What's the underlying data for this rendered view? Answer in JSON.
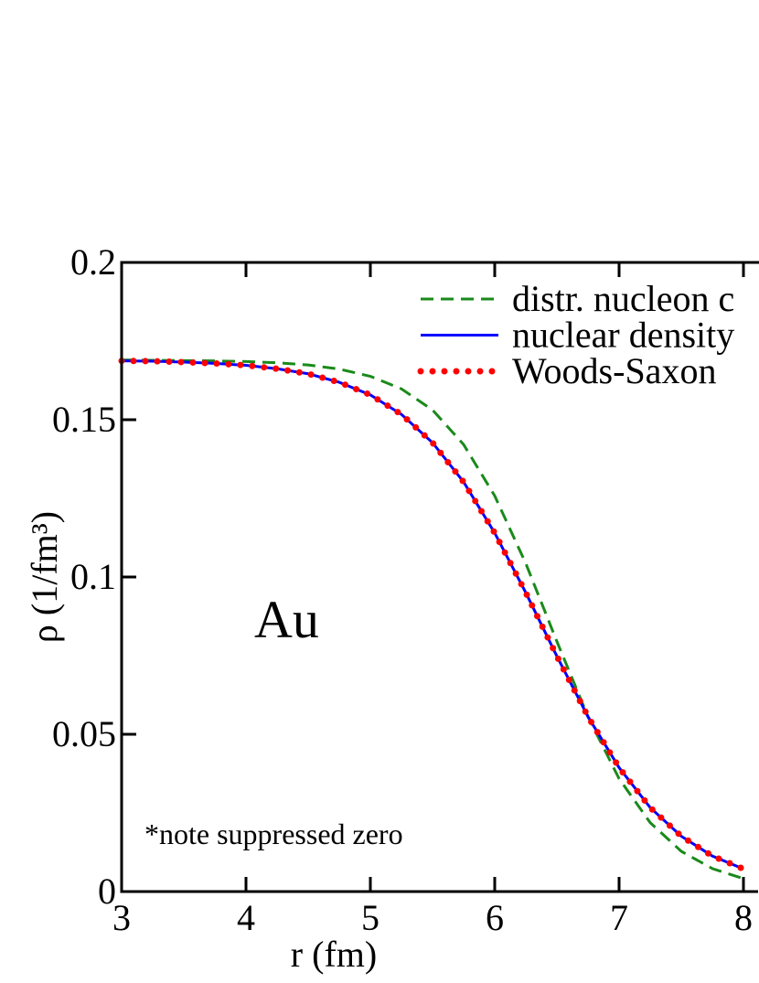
{
  "chart_data": {
    "type": "line",
    "xlabel": "r (fm)",
    "ylabel": "ρ (1/fm³)",
    "annotations": [
      "Au",
      "*note suppressed zero"
    ],
    "x": [
      3,
      3.25,
      3.5,
      3.75,
      4,
      4.25,
      4.5,
      4.75,
      5,
      5.25,
      5.5,
      5.75,
      6,
      6.25,
      6.5,
      6.75,
      7,
      7.25,
      7.5,
      7.75,
      8
    ],
    "series": [
      {
        "name": "distr. nucleon c",
        "color": "#1a8a1a",
        "dash": "dashed",
        "values": [
          0.169,
          0.1689,
          0.1688,
          0.1687,
          0.1685,
          0.1681,
          0.1674,
          0.1661,
          0.1638,
          0.1598,
          0.1531,
          0.1421,
          0.1258,
          0.1043,
          0.0795,
          0.0556,
          0.0359,
          0.0219,
          0.0128,
          0.0073,
          0.0041
        ]
      },
      {
        "name": "nuclear density",
        "color": "#0000ff",
        "dash": "solid",
        "values": [
          0.1687,
          0.1686,
          0.1683,
          0.1679,
          0.1673,
          0.1662,
          0.1646,
          0.1619,
          0.1579,
          0.1517,
          0.1427,
          0.1302,
          0.114,
          0.095,
          0.0748,
          0.0556,
          0.0394,
          0.0267,
          0.0176,
          0.0113,
          0.0072
        ]
      },
      {
        "name": "Woods-Saxon",
        "color": "#ff0000",
        "dash": "dotted",
        "values": [
          0.1687,
          0.1686,
          0.1683,
          0.1679,
          0.1673,
          0.1662,
          0.1646,
          0.1619,
          0.1579,
          0.1517,
          0.1427,
          0.1302,
          0.114,
          0.095,
          0.0748,
          0.0556,
          0.0394,
          0.0267,
          0.0176,
          0.0113,
          0.0072
        ]
      }
    ],
    "xlim": [
      3,
      8.125
    ],
    "xticks": [
      3,
      4,
      5,
      6,
      7,
      8
    ],
    "ylim": [
      0,
      0.2
    ],
    "yticks": [
      0,
      0.05,
      0.1,
      0.15,
      0.2
    ],
    "legend": "upper-right"
  }
}
